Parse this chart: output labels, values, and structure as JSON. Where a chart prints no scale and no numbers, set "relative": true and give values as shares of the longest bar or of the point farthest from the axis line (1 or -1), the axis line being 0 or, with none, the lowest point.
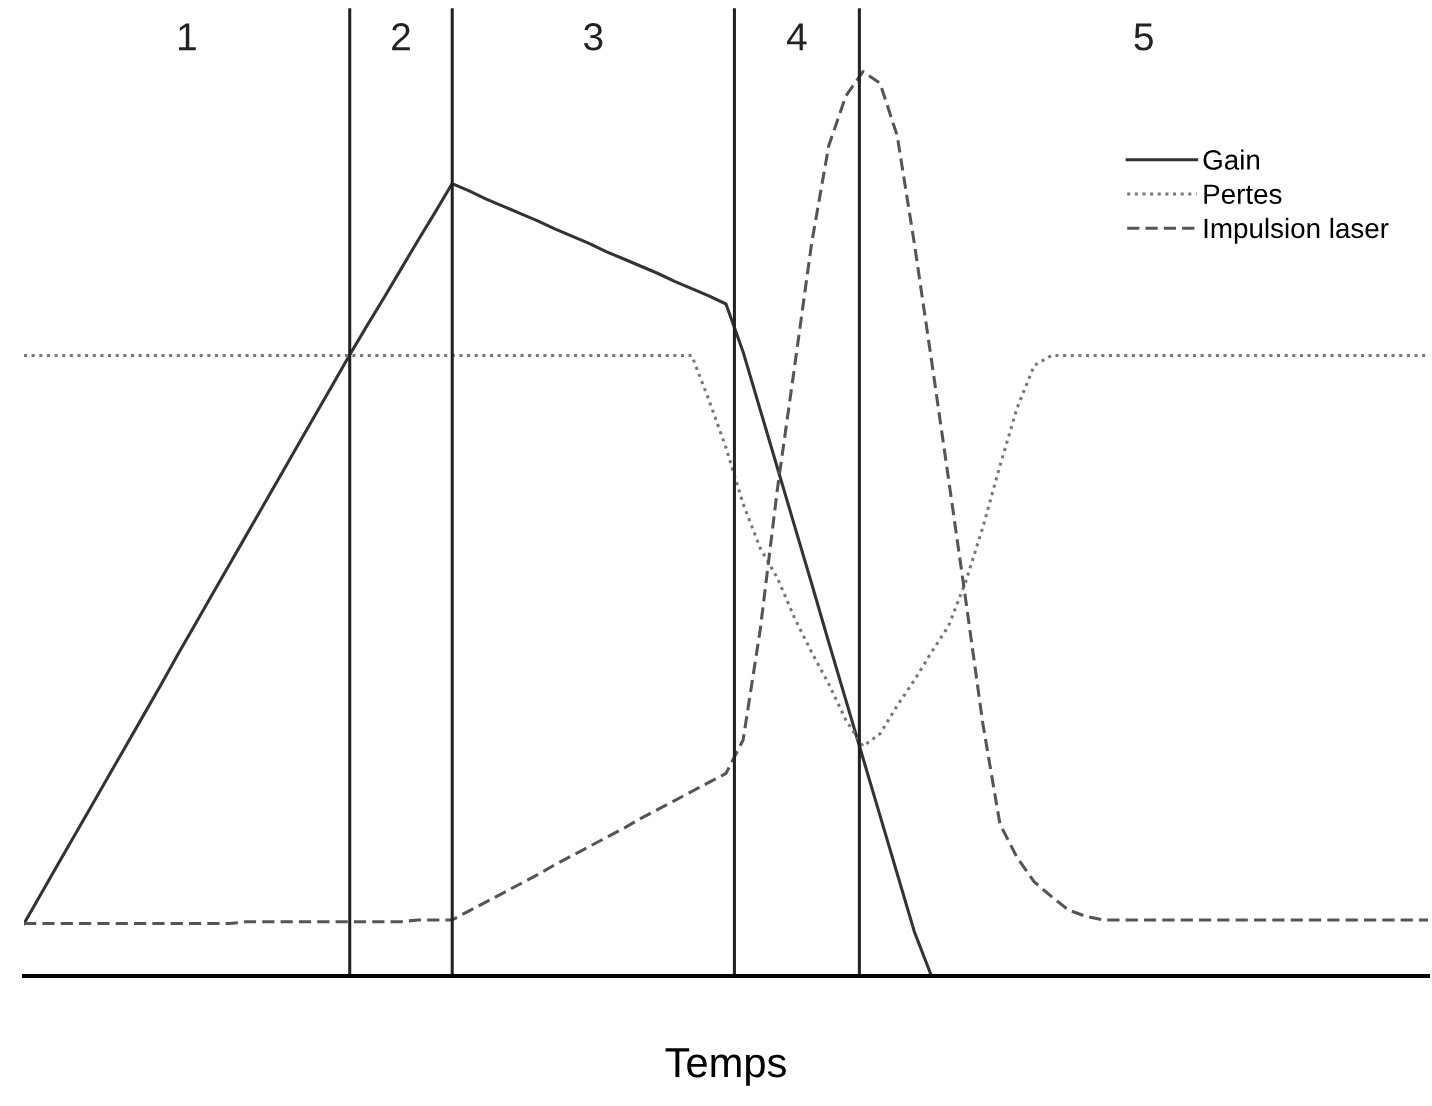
{
  "chart_data": {
    "type": "line",
    "relative": true,
    "xlabel": "Temps",
    "legend": "top right",
    "categories": [
      null,
      null,
      null,
      null,
      null,
      null,
      null,
      null,
      null,
      null,
      null,
      null,
      null,
      null,
      null,
      null,
      null,
      null,
      null,
      null,
      null,
      null,
      null,
      null,
      null,
      null,
      null,
      null,
      null,
      null,
      null,
      null,
      null,
      null,
      null,
      null,
      null,
      null,
      null,
      null,
      null,
      null,
      null,
      null,
      null,
      null,
      null,
      null,
      null,
      null,
      null,
      null,
      null,
      null,
      null,
      null,
      null,
      null,
      null,
      null,
      null,
      null,
      null,
      null,
      null,
      null,
      null,
      null,
      null,
      null,
      null,
      null,
      null,
      null,
      null,
      null,
      null,
      null,
      null,
      null,
      null,
      null,
      null
    ],
    "series": [
      {
        "name": "Gain",
        "color": "#333333",
        "line_style": "solid",
        "values": [
          0.058,
          0.091,
          0.124,
          0.157,
          0.19,
          0.223,
          0.256,
          0.289,
          0.322,
          0.356,
          0.389,
          0.422,
          0.455,
          0.488,
          0.521,
          0.554,
          0.587,
          0.62,
          0.653,
          0.686,
          0.718,
          0.749,
          0.781,
          0.813,
          0.844,
          0.876,
          0.868,
          0.859,
          0.851,
          0.843,
          0.835,
          0.826,
          0.818,
          0.81,
          0.801,
          0.793,
          0.785,
          0.777,
          0.768,
          0.76,
          0.752,
          0.743,
          0.69,
          0.626,
          0.562,
          0.498,
          0.434,
          0.369,
          0.305,
          0.241,
          0.177,
          0.113,
          0.049,
          0.0,
          null,
          null,
          null,
          null,
          null,
          null,
          null,
          null,
          null,
          null,
          null,
          null,
          null,
          null,
          null,
          null,
          null,
          null,
          null,
          null,
          null,
          null,
          null,
          null,
          null,
          null,
          null,
          null,
          null
        ]
      },
      {
        "name": "Pertes",
        "color": "#777777",
        "line_style": "dotted",
        "values": [
          0.686,
          0.686,
          0.686,
          0.686,
          0.686,
          0.686,
          0.686,
          0.686,
          0.686,
          0.686,
          0.686,
          0.686,
          0.686,
          0.686,
          0.686,
          0.686,
          0.686,
          0.686,
          0.686,
          0.686,
          0.686,
          0.686,
          0.686,
          0.686,
          0.686,
          0.686,
          0.686,
          0.686,
          0.686,
          0.686,
          0.686,
          0.686,
          0.686,
          0.686,
          0.686,
          0.686,
          0.686,
          0.686,
          0.686,
          0.686,
          0.637,
          0.584,
          0.522,
          0.473,
          0.44,
          0.396,
          0.358,
          0.323,
          0.283,
          0.254,
          0.268,
          0.299,
          0.327,
          0.358,
          0.387,
          0.436,
          0.496,
          0.564,
          0.628,
          0.675,
          0.686,
          0.686,
          0.686,
          0.686,
          0.686,
          0.686,
          0.686,
          0.686,
          0.686,
          0.686,
          0.686,
          0.686,
          0.686,
          0.686,
          0.686,
          0.686,
          0.686,
          0.686,
          0.686,
          0.686,
          0.686,
          0.686,
          0.686
        ]
      },
      {
        "name": "Impulsion laser",
        "color": "#555555",
        "line_style": "dashed",
        "values": [
          0.058,
          0.058,
          0.058,
          0.058,
          0.058,
          0.058,
          0.058,
          0.058,
          0.058,
          0.058,
          0.058,
          0.058,
          0.058,
          0.06,
          0.06,
          0.06,
          0.06,
          0.06,
          0.06,
          0.06,
          0.06,
          0.06,
          0.06,
          0.062,
          0.062,
          0.062,
          0.072,
          0.082,
          0.092,
          0.102,
          0.112,
          0.123,
          0.133,
          0.143,
          0.153,
          0.163,
          0.174,
          0.184,
          0.194,
          0.204,
          0.214,
          0.224,
          0.261,
          0.383,
          0.538,
          0.673,
          0.81,
          0.918,
          0.973,
          1.0,
          0.987,
          0.929,
          0.81,
          0.681,
          0.549,
          0.416,
          0.279,
          0.168,
          0.131,
          0.104,
          0.088,
          0.073,
          0.066,
          0.062,
          0.062,
          0.062,
          0.062,
          0.062,
          0.062,
          0.062,
          0.062,
          0.062,
          0.062,
          0.062,
          0.062,
          0.062,
          0.062,
          0.062,
          0.062,
          0.062,
          0.062,
          0.062,
          0.062
        ]
      }
    ],
    "annotations": [
      "1",
      "2",
      "3",
      "4",
      "5"
    ]
  }
}
